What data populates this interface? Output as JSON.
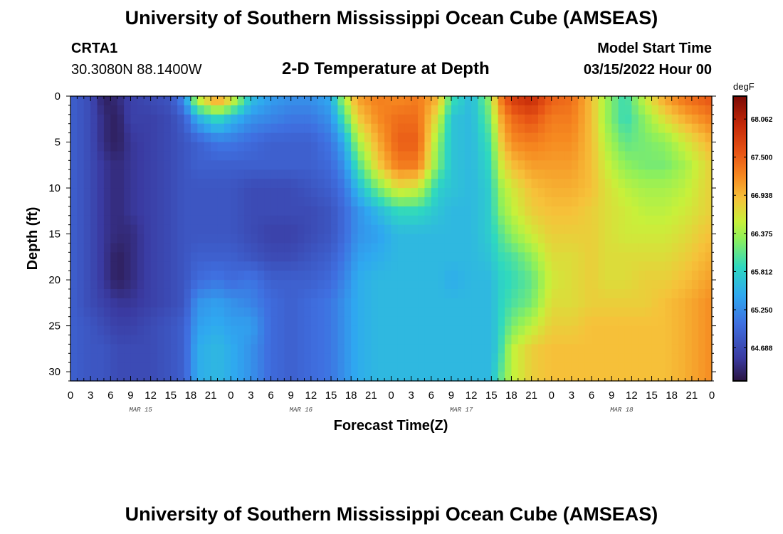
{
  "header": {
    "title": "University of Southern Mississippi Ocean Cube (AMSEAS)",
    "station_name": "CRTA1",
    "station_coords": "30.3080N  88.1400W",
    "plot_title": "2-D Temperature at Depth",
    "model_start_label": "Model Start Time",
    "model_start_value": "03/15/2022 Hour 00"
  },
  "footer": {
    "title": "University of Southern Mississippi Ocean Cube (AMSEAS)"
  },
  "chart_data": {
    "type": "heatmap",
    "title": "2-D Temperature at Depth",
    "xlabel": "Forecast Time(Z)",
    "ylabel": "Depth (ft)",
    "xlim": [
      0,
      96
    ],
    "ylim": [
      31,
      0
    ],
    "x_tick_labels": [
      "0",
      "3",
      "6",
      "9",
      "12",
      "15",
      "18",
      "21",
      "0",
      "3",
      "6",
      "9",
      "12",
      "15",
      "18",
      "21",
      "0",
      "3",
      "6",
      "9",
      "12",
      "15",
      "18",
      "21",
      "0",
      "3",
      "6",
      "9",
      "12",
      "15",
      "18",
      "21",
      "0"
    ],
    "date_labels": [
      {
        "label": "MAR 15",
        "hour": 10.5
      },
      {
        "label": "MAR 16",
        "hour": 34.5
      },
      {
        "label": "MAR 17",
        "hour": 58.5
      },
      {
        "label": "MAR 18",
        "hour": 82.5
      }
    ],
    "y_ticks": [
      0,
      5,
      10,
      15,
      20,
      25,
      30
    ],
    "colorbar": {
      "unit": "degF",
      "min": 64.2,
      "max": 68.4,
      "tick_labels": [
        "68.062",
        "67.500",
        "66.938",
        "66.375",
        "65.812",
        "65.250",
        "64.688"
      ],
      "tick_values": [
        68.062,
        67.5,
        66.938,
        66.375,
        65.812,
        65.25,
        64.688
      ]
    },
    "grid": false,
    "depths_ft": [
      0,
      2.5,
      5,
      7.5,
      10,
      12.5,
      15,
      17.5,
      20,
      22.5,
      25,
      27.5,
      31
    ],
    "profiles": [
      {
        "hour": 0,
        "values": [
          64.9,
          64.9,
          64.9,
          64.9,
          64.9,
          64.9,
          64.9,
          64.9,
          64.9,
          64.9,
          64.9,
          64.9,
          64.9
        ]
      },
      {
        "hour": 3,
        "values": [
          64.7,
          64.7,
          64.7,
          64.7,
          64.7,
          64.7,
          64.7,
          64.7,
          64.7,
          64.7,
          64.8,
          64.8,
          64.8
        ]
      },
      {
        "hour": 5,
        "values": [
          64.3,
          64.4,
          64.4,
          64.5,
          64.5,
          64.5,
          64.5,
          64.5,
          64.5,
          64.6,
          64.7,
          64.8,
          64.8
        ]
      },
      {
        "hour": 7,
        "values": [
          64.4,
          64.3,
          64.3,
          64.4,
          64.4,
          64.4,
          64.4,
          64.3,
          64.3,
          64.5,
          64.6,
          64.7,
          64.7
        ]
      },
      {
        "hour": 9,
        "values": [
          64.6,
          64.6,
          64.5,
          64.5,
          64.5,
          64.5,
          64.4,
          64.4,
          64.4,
          64.5,
          64.6,
          64.7,
          64.7
        ]
      },
      {
        "hour": 12,
        "values": [
          64.7,
          64.6,
          64.6,
          64.6,
          64.6,
          64.6,
          64.6,
          64.6,
          64.6,
          64.6,
          64.7,
          64.7,
          64.7
        ]
      },
      {
        "hour": 15,
        "values": [
          64.8,
          64.7,
          64.7,
          64.7,
          64.7,
          64.7,
          64.7,
          64.7,
          64.7,
          64.7,
          64.8,
          64.8,
          64.8
        ]
      },
      {
        "hour": 17,
        "values": [
          65.3,
          64.9,
          64.8,
          64.8,
          64.8,
          64.8,
          64.8,
          64.8,
          64.8,
          64.8,
          64.9,
          64.9,
          64.9
        ]
      },
      {
        "hour": 19,
        "values": [
          66.7,
          65.5,
          64.9,
          64.9,
          64.8,
          64.8,
          64.8,
          64.9,
          65.0,
          65.3,
          65.4,
          65.5,
          65.5
        ]
      },
      {
        "hour": 22,
        "values": [
          67.3,
          65.9,
          65.1,
          64.9,
          64.8,
          64.8,
          64.8,
          64.9,
          65.1,
          65.4,
          65.5,
          65.6,
          65.6
        ]
      },
      {
        "hour": 24,
        "values": [
          66.9,
          65.6,
          65.1,
          64.9,
          64.8,
          64.8,
          64.8,
          64.9,
          65.0,
          65.3,
          65.4,
          65.5,
          65.5
        ]
      },
      {
        "hour": 27,
        "values": [
          65.7,
          65.3,
          65.0,
          64.9,
          64.7,
          64.7,
          64.7,
          64.8,
          65.1,
          65.2,
          65.4,
          65.3,
          65.3
        ]
      },
      {
        "hour": 30,
        "values": [
          65.4,
          65.2,
          64.9,
          64.9,
          64.7,
          64.7,
          64.6,
          64.7,
          64.9,
          65.0,
          65.0,
          65.0,
          65.0
        ]
      },
      {
        "hour": 33,
        "values": [
          65.3,
          65.1,
          64.9,
          64.9,
          64.7,
          64.7,
          64.6,
          64.7,
          64.9,
          64.9,
          64.9,
          64.9,
          64.9
        ]
      },
      {
        "hour": 36,
        "values": [
          65.3,
          65.1,
          64.9,
          64.9,
          64.8,
          64.7,
          64.7,
          64.8,
          64.9,
          65.0,
          65.0,
          65.0,
          65.0
        ]
      },
      {
        "hour": 39,
        "values": [
          65.5,
          65.3,
          65.1,
          65.0,
          64.9,
          64.8,
          64.8,
          64.9,
          65.0,
          65.1,
          65.1,
          65.1,
          65.1
        ]
      },
      {
        "hour": 41,
        "values": [
          66.5,
          66.0,
          65.5,
          65.3,
          65.1,
          65.0,
          65.0,
          65.1,
          65.2,
          65.3,
          65.3,
          65.3,
          65.3
        ]
      },
      {
        "hour": 43,
        "values": [
          67.1,
          66.8,
          66.4,
          66.0,
          65.6,
          65.3,
          65.3,
          65.4,
          65.5,
          65.5,
          65.5,
          65.5,
          65.5
        ]
      },
      {
        "hour": 46,
        "values": [
          67.3,
          67.2,
          67.0,
          66.8,
          66.2,
          65.6,
          65.4,
          65.5,
          65.6,
          65.6,
          65.6,
          65.6,
          65.6
        ]
      },
      {
        "hour": 49,
        "values": [
          67.2,
          67.4,
          67.5,
          67.3,
          66.7,
          65.9,
          65.6,
          65.6,
          65.6,
          65.6,
          65.6,
          65.6,
          65.6
        ]
      },
      {
        "hour": 52,
        "values": [
          67.3,
          67.4,
          67.5,
          67.3,
          66.6,
          65.9,
          65.6,
          65.6,
          65.6,
          65.6,
          65.6,
          65.6,
          65.6
        ]
      },
      {
        "hour": 55,
        "values": [
          67.0,
          66.6,
          66.3,
          66.2,
          65.8,
          65.7,
          65.6,
          65.6,
          65.6,
          65.6,
          65.6,
          65.6,
          65.6
        ]
      },
      {
        "hour": 57,
        "values": [
          66.0,
          65.7,
          65.7,
          65.7,
          65.7,
          65.6,
          65.6,
          65.6,
          65.5,
          65.6,
          65.6,
          65.6,
          65.6
        ]
      },
      {
        "hour": 60,
        "values": [
          65.6,
          65.6,
          65.6,
          65.6,
          65.6,
          65.6,
          65.6,
          65.6,
          65.6,
          65.6,
          65.6,
          65.6,
          65.6
        ]
      },
      {
        "hour": 63,
        "values": [
          66.4,
          66.2,
          66.0,
          65.9,
          65.8,
          65.8,
          65.8,
          65.7,
          65.6,
          65.6,
          65.6,
          65.6,
          65.6
        ]
      },
      {
        "hour": 64,
        "values": [
          67.2,
          66.9,
          66.7,
          66.5,
          66.3,
          66.2,
          66.0,
          65.9,
          65.8,
          65.8,
          65.8,
          65.8,
          66.0
        ]
      },
      {
        "hour": 66,
        "values": [
          67.8,
          67.4,
          67.2,
          66.9,
          66.6,
          66.5,
          66.3,
          66.0,
          65.9,
          66.0,
          66.2,
          66.5,
          66.5
        ]
      },
      {
        "hour": 69,
        "values": [
          68.0,
          67.6,
          67.3,
          67.1,
          66.9,
          66.8,
          66.6,
          66.3,
          66.1,
          66.2,
          66.5,
          66.8,
          66.8
        ]
      },
      {
        "hour": 72,
        "values": [
          67.5,
          67.3,
          67.2,
          67.1,
          67.0,
          66.9,
          66.8,
          66.7,
          66.6,
          66.7,
          66.8,
          66.9,
          66.9
        ]
      },
      {
        "hour": 75,
        "values": [
          67.4,
          67.3,
          67.2,
          67.1,
          67.0,
          66.9,
          66.8,
          66.7,
          66.7,
          66.7,
          66.8,
          66.9,
          66.9
        ]
      },
      {
        "hour": 78,
        "values": [
          66.9,
          66.9,
          66.9,
          66.9,
          66.9,
          66.8,
          66.8,
          66.8,
          66.8,
          66.8,
          66.9,
          66.9,
          66.9
        ]
      },
      {
        "hour": 80,
        "values": [
          66.4,
          66.4,
          66.5,
          66.6,
          66.7,
          66.7,
          66.7,
          66.7,
          66.7,
          66.8,
          66.9,
          66.9,
          66.9
        ]
      },
      {
        "hour": 83,
        "values": [
          65.9,
          65.9,
          66.1,
          66.3,
          66.5,
          66.6,
          66.6,
          66.7,
          66.7,
          66.8,
          66.9,
          66.9,
          66.9
        ]
      },
      {
        "hour": 86,
        "values": [
          66.6,
          66.3,
          66.2,
          66.2,
          66.4,
          66.5,
          66.6,
          66.7,
          66.8,
          66.8,
          66.9,
          66.9,
          66.9
        ]
      },
      {
        "hour": 89,
        "values": [
          67.1,
          66.7,
          66.3,
          66.2,
          66.4,
          66.5,
          66.6,
          66.7,
          66.8,
          66.9,
          66.9,
          66.9,
          66.9
        ]
      },
      {
        "hour": 92,
        "values": [
          67.4,
          67.0,
          66.6,
          66.4,
          66.5,
          66.6,
          66.7,
          66.8,
          66.9,
          67.0,
          67.0,
          67.0,
          67.0
        ]
      },
      {
        "hour": 96,
        "values": [
          67.6,
          67.3,
          67.0,
          66.8,
          66.8,
          66.8,
          66.9,
          67.0,
          67.1,
          67.2,
          67.2,
          67.2,
          67.2
        ]
      }
    ]
  }
}
